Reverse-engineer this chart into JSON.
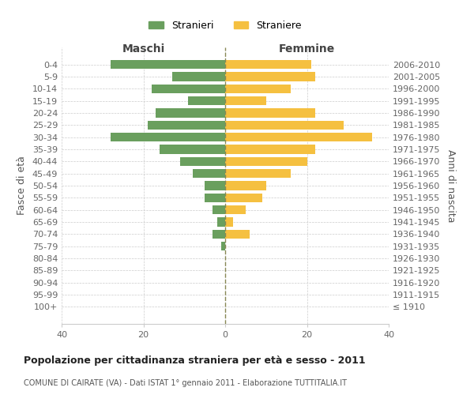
{
  "age_groups": [
    "100+",
    "95-99",
    "90-94",
    "85-89",
    "80-84",
    "75-79",
    "70-74",
    "65-69",
    "60-64",
    "55-59",
    "50-54",
    "45-49",
    "40-44",
    "35-39",
    "30-34",
    "25-29",
    "20-24",
    "15-19",
    "10-14",
    "5-9",
    "0-4"
  ],
  "birth_years": [
    "≤ 1910",
    "1911-1915",
    "1916-1920",
    "1921-1925",
    "1926-1930",
    "1931-1935",
    "1936-1940",
    "1941-1945",
    "1946-1950",
    "1951-1955",
    "1956-1960",
    "1961-1965",
    "1966-1970",
    "1971-1975",
    "1976-1980",
    "1981-1985",
    "1986-1990",
    "1991-1995",
    "1996-2000",
    "2001-2005",
    "2006-2010"
  ],
  "maschi": [
    0,
    0,
    0,
    0,
    0,
    1,
    3,
    2,
    3,
    5,
    5,
    8,
    11,
    16,
    28,
    19,
    17,
    9,
    18,
    13,
    28
  ],
  "femmine": [
    0,
    0,
    0,
    0,
    0,
    0,
    6,
    2,
    5,
    9,
    10,
    16,
    20,
    22,
    36,
    29,
    22,
    10,
    16,
    22,
    21
  ],
  "maschi_color": "#6a9f5e",
  "femmine_color": "#f5c040",
  "background_color": "#ffffff",
  "grid_color": "#cccccc",
  "title": "Popolazione per cittadinanza straniera per età e sesso - 2011",
  "subtitle": "COMUNE DI CAIRATE (VA) - Dati ISTAT 1° gennaio 2011 - Elaborazione TUTTITALIA.IT",
  "ylabel_left": "Fasce di età",
  "ylabel_right": "Anni di nascita",
  "header_maschi": "Maschi",
  "header_femmine": "Femmine",
  "legend_maschi": "Stranieri",
  "legend_femmine": "Straniere",
  "xlim": 40
}
